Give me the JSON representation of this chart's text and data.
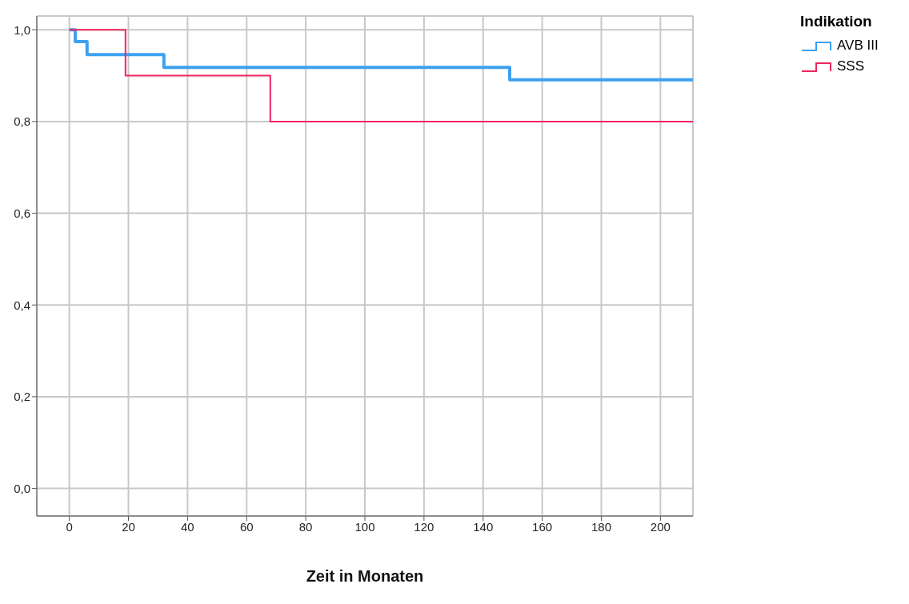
{
  "chart_data": {
    "type": "step",
    "xlabel": "Zeit in Monaten",
    "legend_title": "Indikation",
    "series": [
      {
        "name": "AVB III",
        "color": "#3ea1f0",
        "x": [
          0,
          2,
          6,
          32,
          149,
          211
        ],
        "values": [
          1.0,
          0.974,
          0.946,
          0.918,
          0.891,
          0.891
        ]
      },
      {
        "name": "SSS",
        "color": "#f0245f",
        "x": [
          0,
          19,
          68,
          211
        ],
        "values": [
          1.0,
          0.9,
          0.8,
          0.8
        ]
      }
    ],
    "xlim": [
      -11,
      211
    ],
    "xticks": [
      0,
      20,
      40,
      60,
      80,
      100,
      120,
      140,
      160,
      180,
      200
    ],
    "ylim": [
      -0.06,
      1.03
    ],
    "yticks": [
      {
        "value": 0,
        "label": "0,0"
      },
      {
        "value": 0.2,
        "label": "0,2"
      },
      {
        "value": 0.4,
        "label": "0,4"
      },
      {
        "value": 0.6,
        "label": "0,6"
      },
      {
        "value": 0.8,
        "label": "0,8"
      },
      {
        "value": 1.0,
        "label": "1,0"
      }
    ],
    "grid": true,
    "legend": "top right",
    "marker": "none",
    "line_style": "solid"
  }
}
